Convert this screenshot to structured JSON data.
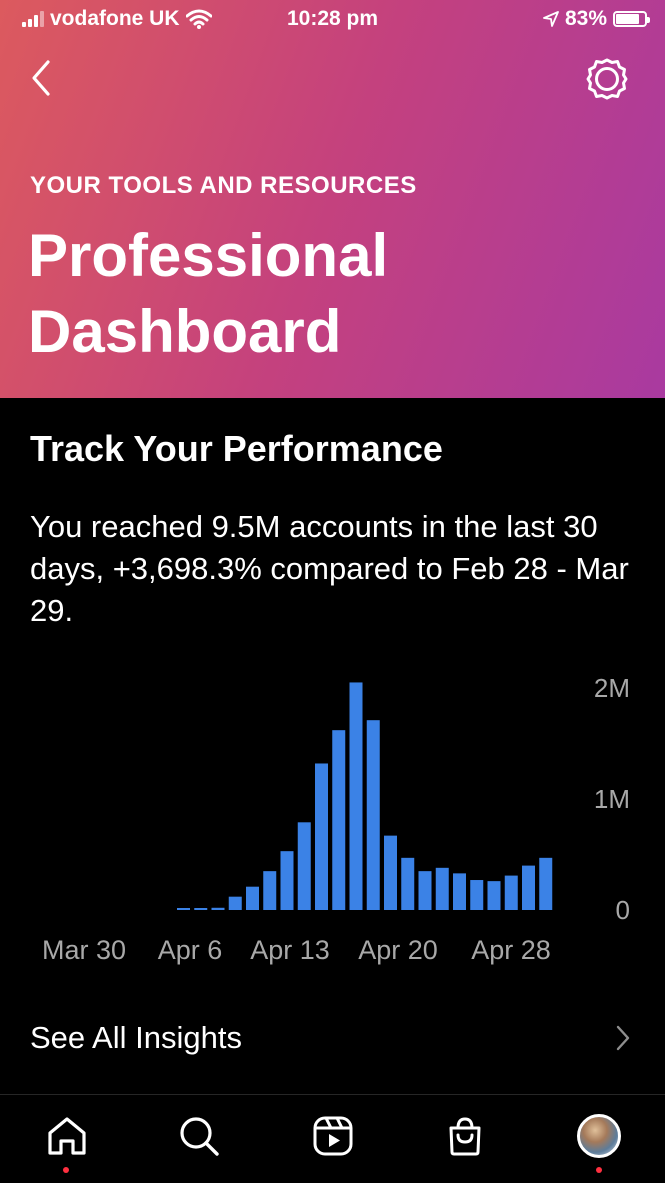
{
  "status_bar": {
    "carrier": "vodafone UK",
    "time": "10:28 pm",
    "battery": "83%",
    "battery_level": 0.83
  },
  "header": {
    "eyebrow": "YOUR TOOLS AND RESOURCES",
    "title_line1": "Professional",
    "title_line2": "Dashboard"
  },
  "performance": {
    "title": "Track Your Performance",
    "summary": "You reached 9.5M accounts in the last 30 days, +3,698.3% compared to Feb 28 - Mar 29."
  },
  "chart_data": {
    "type": "bar",
    "bar_color": "#3b82e6",
    "y_ticks": [
      "2M",
      "1M",
      "0"
    ],
    "y_tick_values": [
      2000000,
      1000000,
      0
    ],
    "ylim": [
      0,
      2000000
    ],
    "x_ticks": [
      "Mar 30",
      "Apr 6",
      "Apr 13",
      "Apr 20",
      "Apr 28"
    ],
    "x_tick_day_index": [
      0,
      7,
      14,
      21,
      29
    ],
    "values": [
      0,
      0,
      0,
      0,
      0,
      0,
      0,
      0,
      5000,
      10000,
      20000,
      120000,
      210000,
      350000,
      530000,
      790000,
      1320000,
      1620000,
      2050000,
      1710000,
      670000,
      470000,
      350000,
      380000,
      330000,
      270000,
      260000,
      310000,
      400000,
      470000
    ]
  },
  "insights": {
    "label": "See All Insights"
  },
  "tab_bar": {
    "items": [
      "home",
      "search",
      "reels",
      "shop",
      "profile"
    ]
  },
  "colors": {
    "header_start": "#dc5a5e",
    "header_end": "#a93aa0",
    "notification_dot": "#ff3040"
  }
}
